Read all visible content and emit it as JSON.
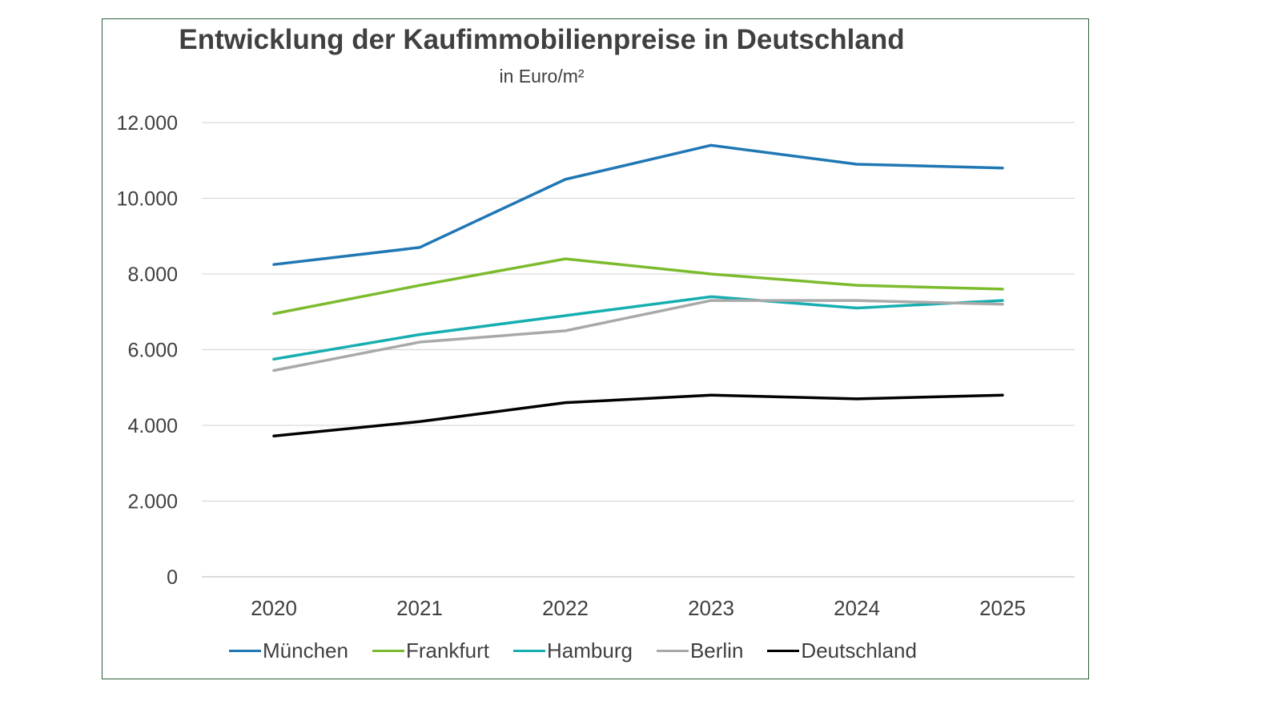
{
  "chart_data": {
    "type": "line",
    "title": "Entwicklung der Kaufimmobilienpreise in Deutschland",
    "subtitle": "in Euro/m²",
    "xlabel": "",
    "ylabel": "",
    "x": [
      "2020",
      "2021",
      "2022",
      "2023",
      "2024",
      "2025"
    ],
    "ylim": [
      0,
      12000
    ],
    "y_ticks": [
      0,
      2000,
      4000,
      6000,
      8000,
      10000,
      12000
    ],
    "y_tick_labels": [
      "0",
      "2.000",
      "4.000",
      "6.000",
      "8.000",
      "10.000",
      "12.000"
    ],
    "grid": "horizontal",
    "legend_position": "bottom",
    "series": [
      {
        "name": "München",
        "color": "#1f77b4",
        "values": [
          8250,
          8700,
          10500,
          11400,
          10900,
          10800
        ]
      },
      {
        "name": "Frankfurt",
        "color": "#7cbb2e",
        "values": [
          6950,
          7700,
          8400,
          8000,
          7700,
          7600
        ]
      },
      {
        "name": "Hamburg",
        "color": "#17aeb0",
        "values": [
          5750,
          6400,
          6900,
          7400,
          7100,
          7300
        ]
      },
      {
        "name": "Berlin",
        "color": "#a9a9a9",
        "values": [
          5450,
          6200,
          6500,
          7300,
          7300,
          7200
        ]
      },
      {
        "name": "Deutschland",
        "color": "#000000",
        "values": [
          3720,
          4100,
          4600,
          4800,
          4700,
          4800
        ]
      }
    ]
  }
}
